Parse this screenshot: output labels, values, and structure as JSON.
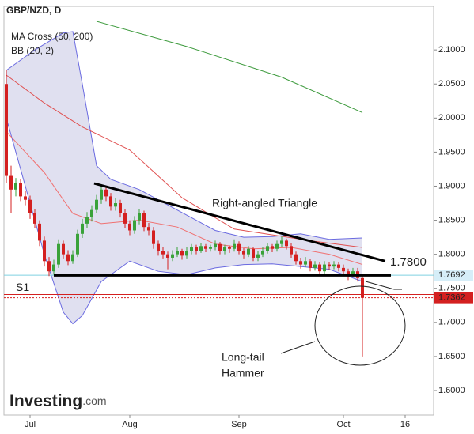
{
  "chart_data": {
    "type": "candlestick",
    "title": "GBP/NZD, D",
    "legend_lines": [
      "MA Cross (50, 200)",
      "BB (20, 2)"
    ],
    "logo": "Investing",
    "logo_suffix": ".com",
    "up_color": "#3aa23a",
    "down_color": "#d42020",
    "ylim": [
      1.564,
      2.164
    ],
    "yticks": [
      {
        "value": 2.1,
        "label": "2.1000"
      },
      {
        "value": 2.05,
        "label": "2.0500"
      },
      {
        "value": 2.0,
        "label": "2.0000"
      },
      {
        "value": 1.95,
        "label": "1.9500"
      },
      {
        "value": 1.9,
        "label": "1.9000"
      },
      {
        "value": 1.85,
        "label": "1.8500"
      },
      {
        "value": 1.8,
        "label": "1.8000"
      },
      {
        "value": 1.75,
        "label": "1.7500"
      },
      {
        "value": 1.7,
        "label": "1.7000"
      },
      {
        "value": 1.65,
        "label": "1.6500"
      },
      {
        "value": 1.6,
        "label": "1.6000"
      }
    ],
    "xlim": [
      -0.5,
      90
    ],
    "xticks": [
      {
        "value": 5,
        "label": "Jul"
      },
      {
        "value": 26,
        "label": "Aug"
      },
      {
        "value": 49,
        "label": "Sep"
      },
      {
        "value": 71,
        "label": "Oct"
      },
      {
        "value": 84,
        "label": "16"
      }
    ],
    "x": [
      0,
      1,
      2,
      3,
      4,
      5,
      6,
      7,
      8,
      9,
      10,
      11,
      12,
      13,
      14,
      15,
      16,
      17,
      18,
      19,
      20,
      21,
      22,
      23,
      24,
      25,
      26,
      27,
      28,
      29,
      30,
      31,
      32,
      33,
      34,
      35,
      36,
      37,
      38,
      39,
      40,
      41,
      42,
      43,
      44,
      45,
      46,
      47,
      48,
      49,
      50,
      51,
      52,
      53,
      54,
      55,
      56,
      57,
      58,
      59,
      60,
      61,
      62,
      63,
      64,
      65,
      66,
      67,
      68,
      69,
      70,
      71,
      72,
      73,
      74,
      75
    ],
    "ohlc": [
      [
        2.05,
        2.07,
        1.905,
        1.915
      ],
      [
        1.915,
        1.93,
        1.86,
        1.895
      ],
      [
        1.895,
        1.912,
        1.885,
        1.905
      ],
      [
        1.905,
        1.91,
        1.878,
        1.885
      ],
      [
        1.885,
        1.893,
        1.872,
        1.88
      ],
      [
        1.88,
        1.886,
        1.852,
        1.86
      ],
      [
        1.86,
        1.866,
        1.838,
        1.845
      ],
      [
        1.845,
        1.85,
        1.812,
        1.82
      ],
      [
        1.82,
        1.826,
        1.782,
        1.79
      ],
      [
        1.79,
        1.796,
        1.768,
        1.775
      ],
      [
        1.775,
        1.792,
        1.77,
        1.785
      ],
      [
        1.785,
        1.822,
        1.78,
        1.815
      ],
      [
        1.815,
        1.82,
        1.794,
        1.8
      ],
      [
        1.8,
        1.806,
        1.784,
        1.79
      ],
      [
        1.79,
        1.806,
        1.786,
        1.8
      ],
      [
        1.8,
        1.836,
        1.796,
        1.83
      ],
      [
        1.83,
        1.852,
        1.824,
        1.845
      ],
      [
        1.845,
        1.862,
        1.838,
        1.855
      ],
      [
        1.855,
        1.872,
        1.848,
        1.865
      ],
      [
        1.865,
        1.887,
        1.86,
        1.88
      ],
      [
        1.88,
        1.902,
        1.874,
        1.895
      ],
      [
        1.895,
        1.9,
        1.878,
        1.885
      ],
      [
        1.885,
        1.89,
        1.864,
        1.87
      ],
      [
        1.87,
        1.882,
        1.864,
        1.875
      ],
      [
        1.875,
        1.88,
        1.854,
        1.86
      ],
      [
        1.86,
        1.866,
        1.838,
        1.845
      ],
      [
        1.845,
        1.85,
        1.828,
        1.835
      ],
      [
        1.835,
        1.856,
        1.83,
        1.85
      ],
      [
        1.85,
        1.866,
        1.844,
        1.86
      ],
      [
        1.86,
        1.864,
        1.834,
        1.84
      ],
      [
        1.84,
        1.846,
        1.828,
        1.835
      ],
      [
        1.835,
        1.84,
        1.808,
        1.815
      ],
      [
        1.815,
        1.82,
        1.798,
        1.805
      ],
      [
        1.805,
        1.81,
        1.794,
        1.8
      ],
      [
        1.8,
        1.804,
        1.778,
        1.795
      ],
      [
        1.795,
        1.806,
        1.79,
        1.8
      ],
      [
        1.8,
        1.81,
        1.796,
        1.805
      ],
      [
        1.805,
        1.808,
        1.792,
        1.798
      ],
      [
        1.798,
        1.81,
        1.794,
        1.805
      ],
      [
        1.805,
        1.815,
        1.8,
        1.81
      ],
      [
        1.81,
        1.814,
        1.8,
        1.805
      ],
      [
        1.805,
        1.816,
        1.802,
        1.812
      ],
      [
        1.812,
        1.815,
        1.803,
        1.808
      ],
      [
        1.808,
        1.814,
        1.804,
        1.81
      ],
      [
        1.81,
        1.82,
        1.806,
        1.815
      ],
      [
        1.815,
        1.818,
        1.8,
        1.805
      ],
      [
        1.805,
        1.814,
        1.8,
        1.81
      ],
      [
        1.81,
        1.813,
        1.802,
        1.808
      ],
      [
        1.808,
        1.822,
        1.804,
        1.815
      ],
      [
        1.815,
        1.819,
        1.8,
        1.805
      ],
      [
        1.805,
        1.809,
        1.794,
        1.8
      ],
      [
        1.8,
        1.812,
        1.796,
        1.808
      ],
      [
        1.808,
        1.811,
        1.79,
        1.795
      ],
      [
        1.795,
        1.805,
        1.79,
        1.8
      ],
      [
        1.8,
        1.81,
        1.796,
        1.805
      ],
      [
        1.805,
        1.817,
        1.801,
        1.812
      ],
      [
        1.812,
        1.815,
        1.803,
        1.808
      ],
      [
        1.808,
        1.82,
        1.804,
        1.815
      ],
      [
        1.815,
        1.826,
        1.81,
        1.82
      ],
      [
        1.82,
        1.823,
        1.807,
        1.812
      ],
      [
        1.812,
        1.816,
        1.795,
        1.8
      ],
      [
        1.8,
        1.804,
        1.785,
        1.79
      ],
      [
        1.79,
        1.795,
        1.779,
        1.785
      ],
      [
        1.785,
        1.796,
        1.781,
        1.79
      ],
      [
        1.79,
        1.793,
        1.775,
        1.78
      ],
      [
        1.78,
        1.79,
        1.776,
        1.785
      ],
      [
        1.785,
        1.788,
        1.77,
        1.775
      ],
      [
        1.775,
        1.79,
        1.771,
        1.785
      ],
      [
        1.785,
        1.788,
        1.777,
        1.782
      ],
      [
        1.782,
        1.79,
        1.778,
        1.785
      ],
      [
        1.785,
        1.788,
        1.775,
        1.78
      ],
      [
        1.78,
        1.785,
        1.77,
        1.775
      ],
      [
        1.775,
        1.779,
        1.762,
        1.77
      ],
      [
        1.77,
        1.78,
        1.766,
        1.775
      ],
      [
        1.775,
        1.78,
        1.76,
        1.765
      ],
      [
        1.765,
        1.77,
        1.65,
        1.736
      ]
    ],
    "band": {
      "color": "#d8d8ec",
      "line_color": "#6a6ae0",
      "upper": {
        "x": [
          0,
          6,
          12,
          14,
          16,
          19,
          22,
          28,
          36,
          44,
          50,
          56,
          62,
          68,
          75
        ],
        "values": [
          2.07,
          2.1,
          2.125,
          2.127,
          2.05,
          1.93,
          1.91,
          1.895,
          1.865,
          1.835,
          1.825,
          1.826,
          1.83,
          1.822,
          1.824
        ]
      },
      "lower": {
        "x": [
          0,
          4,
          8,
          12,
          14,
          16,
          20,
          26,
          32,
          38,
          44,
          50,
          56,
          62,
          68,
          75
        ],
        "values": [
          2.0,
          1.9,
          1.8,
          1.715,
          1.698,
          1.71,
          1.76,
          1.79,
          1.775,
          1.77,
          1.78,
          1.785,
          1.786,
          1.782,
          1.778,
          1.76
        ]
      }
    },
    "overlays": [
      {
        "color": "#3c9a3c",
        "x": [
          19,
          38,
          58,
          75
        ],
        "values": [
          2.142,
          2.105,
          2.06,
          2.008
        ]
      },
      {
        "color": "#e05050",
        "x": [
          0,
          8,
          16,
          26,
          37,
          48,
          65,
          75
        ],
        "values": [
          2.063,
          2.022,
          1.987,
          1.953,
          1.883,
          1.837,
          1.819,
          1.81
        ]
      },
      {
        "color": "#f07070",
        "x": [
          0,
          8,
          14,
          20,
          28,
          36,
          44,
          52,
          60,
          68,
          75
        ],
        "values": [
          1.98,
          1.92,
          1.86,
          1.845,
          1.85,
          1.84,
          1.815,
          1.808,
          1.81,
          1.8,
          1.785
        ]
      }
    ],
    "trend_line": {
      "x": [
        18.5,
        79.8
      ],
      "values": [
        1.904,
        1.79
      ]
    },
    "support_line": {
      "x": [
        10,
        81
      ],
      "values": [
        1.769,
        1.769
      ]
    },
    "triangle_label": "Right-angled Triangle",
    "level_label": "1.7800",
    "s1": {
      "label": "S1",
      "value": 1.741
    },
    "price_lines": [
      {
        "value": 1.7692,
        "label": "1.7692",
        "color": "#7fd0e0",
        "box": "#d6eef8",
        "text_color": "#222"
      },
      {
        "value": 1.7362,
        "label": "1.7362",
        "color": "#d42020",
        "box": "#d42020",
        "text_color": "#fff"
      }
    ],
    "hammer_label": [
      "Long-tail",
      "Hammer"
    ]
  }
}
